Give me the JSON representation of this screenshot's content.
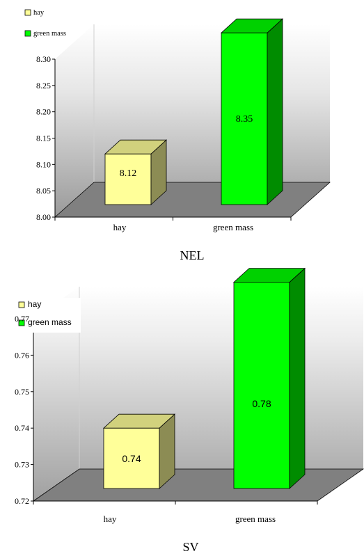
{
  "chart_data": [
    {
      "type": "bar",
      "title": "NEL",
      "categories": [
        "hay",
        "green mass"
      ],
      "values": [
        8.12,
        8.35
      ],
      "data_labels": [
        "8.12",
        "8.35"
      ],
      "ylim": [
        8.0,
        8.3
      ],
      "yticks": [
        "8.00",
        "8.05",
        "8.10",
        "8.15",
        "8.20",
        "8.25",
        "8.30"
      ],
      "legend": {
        "placement": "top-left",
        "items": [
          {
            "label": "hay",
            "color": "#ffff99"
          },
          {
            "label": "green mass",
            "color": "#00ff00"
          }
        ]
      },
      "grid": false,
      "style": "3d-column"
    },
    {
      "type": "bar",
      "title": "SV",
      "categories": [
        "hay",
        "green mass"
      ],
      "values": [
        0.74,
        0.78
      ],
      "data_labels": [
        "0.74",
        "0.78"
      ],
      "ylim": [
        0.72,
        0.77
      ],
      "yticks": [
        "0.72",
        "0.73",
        "0.74",
        "0.75",
        "0.76",
        "0.77"
      ],
      "legend": {
        "placement": "top-left",
        "items": [
          {
            "label": "hay",
            "color": "#ffff99"
          },
          {
            "label": "green mass",
            "color": "#00ff00"
          }
        ]
      },
      "grid": false,
      "style": "3d-column"
    }
  ]
}
